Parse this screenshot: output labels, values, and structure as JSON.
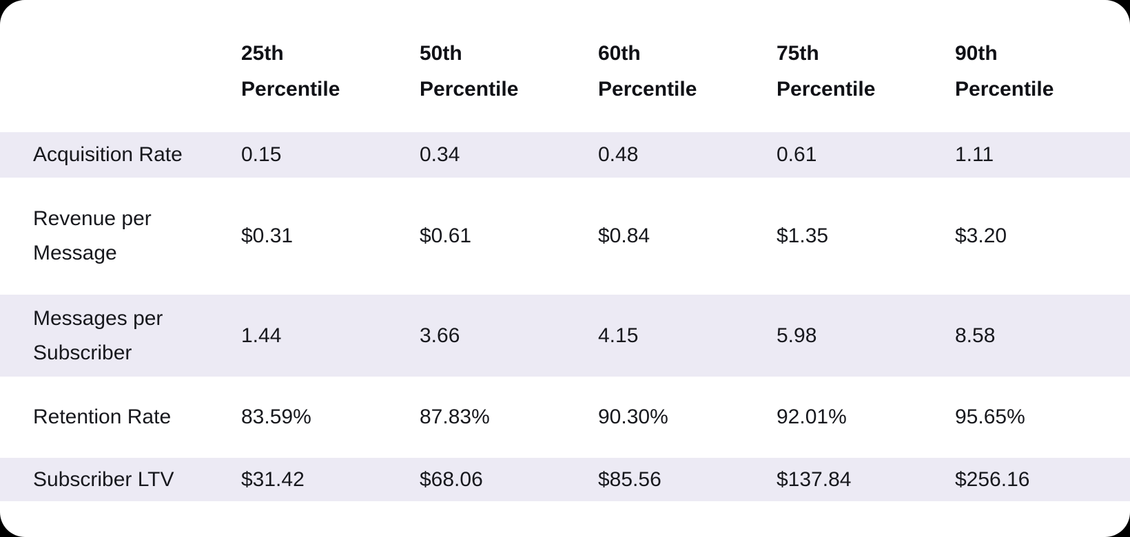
{
  "colors": {
    "page_background": "#000000",
    "card_background": "#FFFFFF",
    "row_stripe": "#ECEAF4",
    "text": "#17181D",
    "header_text": "#101116"
  },
  "chart_data": {
    "type": "table",
    "title": "",
    "corner_label": "",
    "columns": [
      "25th Percentile",
      "50th Percentile",
      "60th Percentile",
      "75th Percentile",
      "90th Percentile"
    ],
    "rows": [
      {
        "label": "Acquisition Rate",
        "values": [
          "0.15",
          "0.34",
          "0.48",
          "0.61",
          "1.11"
        ],
        "numeric": [
          0.15,
          0.34,
          0.48,
          0.61,
          1.11
        ]
      },
      {
        "label": "Revenue per Message",
        "values": [
          "$0.31",
          "$0.61",
          "$0.84",
          "$1.35",
          "$3.20"
        ],
        "numeric": [
          0.31,
          0.61,
          0.84,
          1.35,
          3.2
        ]
      },
      {
        "label": "Messages per Subscriber",
        "values": [
          "1.44",
          "3.66",
          "4.15",
          "5.98",
          "8.58"
        ],
        "numeric": [
          1.44,
          3.66,
          4.15,
          5.98,
          8.58
        ]
      },
      {
        "label": "Retention Rate",
        "values": [
          "83.59%",
          "87.83%",
          "90.30%",
          "92.01%",
          "95.65%"
        ],
        "numeric": [
          83.59,
          87.83,
          90.3,
          92.01,
          95.65
        ]
      },
      {
        "label": "Subscriber LTV",
        "values": [
          "$31.42",
          "$68.06",
          "$85.56",
          "$137.84",
          "$256.16"
        ],
        "numeric": [
          31.42,
          68.06,
          85.56,
          137.84,
          256.16
        ]
      }
    ],
    "layout_hints": {
      "striped_row_indexes": [
        0,
        2,
        4
      ],
      "grid": "off",
      "legend": "none"
    }
  }
}
